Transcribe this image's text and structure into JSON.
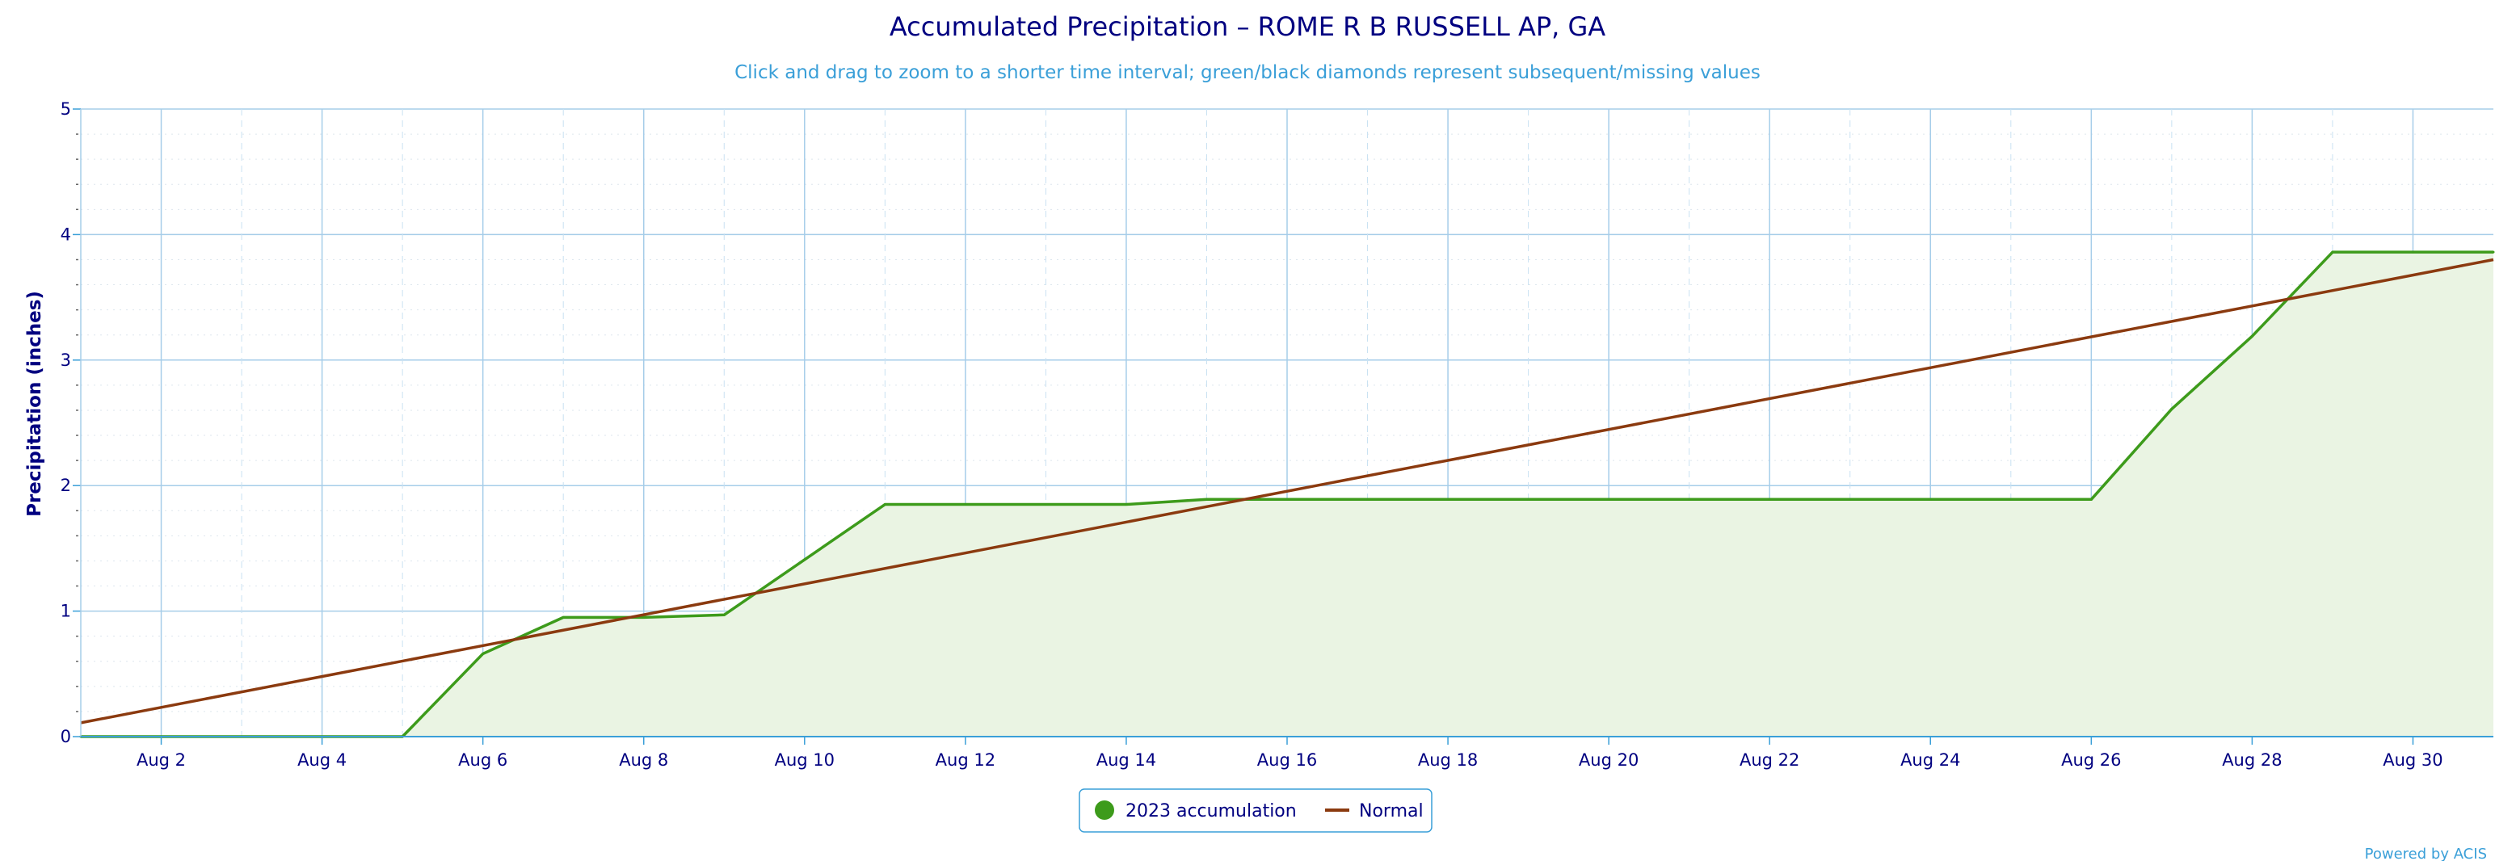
{
  "chart_data": {
    "type": "line",
    "title": "Accumulated Precipitation – ROME R B RUSSELL AP, GA",
    "subtitle": "Click and drag to zoom to a shorter time interval; green/black diamonds represent subsequent/missing values",
    "ylabel": "Precipitation (inches)",
    "xlabel": "",
    "xlim": [
      1,
      31
    ],
    "ylim": [
      0,
      5
    ],
    "y_major_ticks": [
      0,
      1,
      2,
      3,
      4,
      5
    ],
    "y_minor_interval": 0.2,
    "x_tick_days": [
      2,
      4,
      6,
      8,
      10,
      12,
      14,
      16,
      18,
      20,
      22,
      24,
      26,
      28,
      30
    ],
    "x_tick_labels": [
      "Aug 2",
      "Aug 4",
      "Aug 6",
      "Aug 8",
      "Aug 10",
      "Aug 12",
      "Aug 14",
      "Aug 16",
      "Aug 18",
      "Aug 20",
      "Aug 22",
      "Aug 24",
      "Aug 26",
      "Aug 28",
      "Aug 30"
    ],
    "grid": true,
    "legend_position": "bottom-center",
    "series": [
      {
        "name": "2023 accumulation",
        "type": "area",
        "color": "#3d9b1b",
        "fill": "#eaf4e3",
        "x": [
          1,
          2,
          3,
          4,
          5,
          6,
          7,
          8,
          9,
          10,
          11,
          12,
          13,
          14,
          15,
          16,
          17,
          18,
          19,
          20,
          21,
          22,
          23,
          24,
          25,
          26,
          27,
          28,
          29,
          30,
          31
        ],
        "y": [
          0,
          0,
          0,
          0,
          0,
          0.66,
          0.95,
          0.95,
          0.97,
          1.41,
          1.85,
          1.85,
          1.85,
          1.85,
          1.89,
          1.89,
          1.89,
          1.89,
          1.89,
          1.89,
          1.89,
          1.89,
          1.89,
          1.89,
          1.89,
          1.89,
          2.61,
          3.19,
          3.86,
          3.86,
          3.86
        ]
      },
      {
        "name": "Normal",
        "type": "line",
        "color": "#8b3a0f",
        "x": [
          1,
          31
        ],
        "y": [
          0.11,
          3.8
        ]
      }
    ]
  },
  "credit": "Powered by ACIS"
}
